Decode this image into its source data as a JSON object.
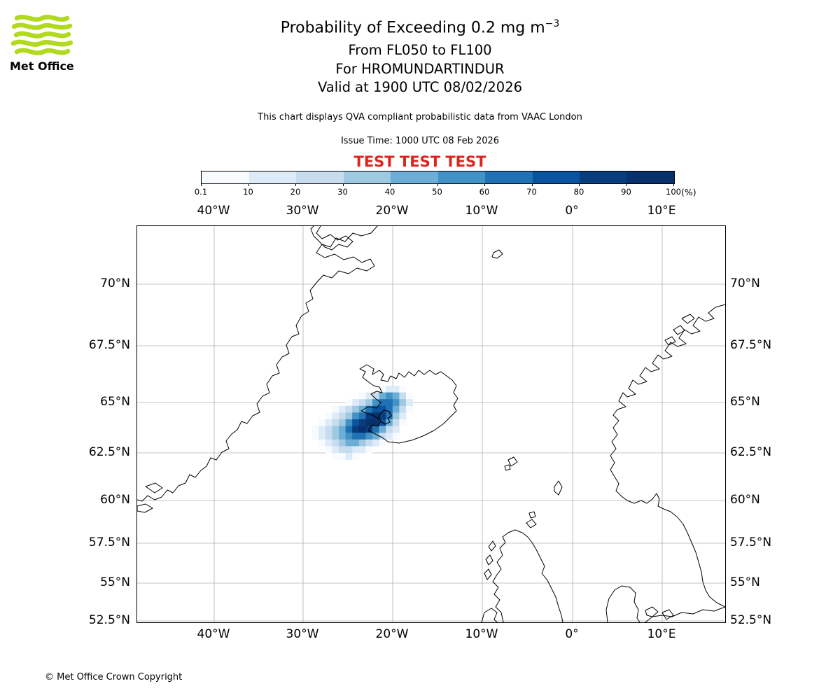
{
  "logo": {
    "text": "Met Office",
    "green": "#b2d91e"
  },
  "header": {
    "title_main": "Probability of Exceeding 0.2 mg m",
    "title_exponent": "−3",
    "line_fl": "From FL050 to FL100",
    "line_for": "For HROMUNDARTINDUR",
    "line_valid": "Valid at 1900 UTC 08/02/2026",
    "description": "This chart displays QVA compliant probabilistic data from VAAC London",
    "issue_time": "Issue Time: 1000 UTC 08 Feb 2026",
    "test_banner": "TEST TEST TEST",
    "test_color": "#dc241f"
  },
  "colorbar": {
    "tick_labels": [
      "0.1",
      "10",
      "20",
      "30",
      "40",
      "50",
      "60",
      "70",
      "80",
      "90",
      "100"
    ],
    "unit_label": "(%)",
    "colors": [
      "#f7fbff",
      "#ddeaf7",
      "#c7dcef",
      "#9fc9e1",
      "#6caed6",
      "#4292c6",
      "#2171b5",
      "#0a539e",
      "#083c7d",
      "#08306b"
    ]
  },
  "axes": {
    "lon_ticks": [
      "40°W",
      "30°W",
      "20°W",
      "10°W",
      "0°",
      "10°E"
    ],
    "lat_ticks": [
      "70°N",
      "67.5°N",
      "65°N",
      "62.5°N",
      "60°N",
      "57.5°N",
      "55°N",
      "52.5°N"
    ]
  },
  "chart_data": {
    "type": "heatmap",
    "quantity": "Probability of exceeding 0.2 mg m-3 volcanic ash concentration (%)",
    "layer": "FL050 to FL100",
    "volcano": "HROMUNDARTINDUR",
    "valid_time": "1900 UTC 08/02/2026",
    "issue_time": "1000 UTC 08 Feb 2026",
    "data_source": "QVA compliant probabilistic data from VAAC London",
    "probability_bin_edges_percent": [
      0.1,
      10,
      20,
      30,
      40,
      50,
      60,
      70,
      80,
      90,
      100
    ],
    "map_lon_ticks": [
      "40°W",
      "30°W",
      "20°W",
      "10°W",
      "0°",
      "10°E"
    ],
    "map_lat_ticks": [
      "70°N",
      "67.5°N",
      "65°N",
      "62.5°N",
      "60°N",
      "57.5°N",
      "55°N",
      "52.5°N"
    ],
    "plume_extent_estimate": {
      "lon_west": "30°W",
      "lon_east": "17°W",
      "lat_south": "62.2°N",
      "lat_north": "65.7°N",
      "location": "over and southwest of Iceland, peak >90% southwest of the volcano"
    },
    "plume_grid": {
      "note": "Estimated probability (%) per raster cell read from map colours; 0 = below 0.1%",
      "values": [
        [
          0,
          0,
          0,
          0,
          0,
          0,
          0,
          0,
          0,
          0,
          0,
          5,
          15,
          15,
          5,
          0,
          0
        ],
        [
          0,
          0,
          0,
          0,
          0,
          0,
          0,
          0,
          5,
          15,
          25,
          45,
          55,
          45,
          25,
          5,
          0
        ],
        [
          0,
          0,
          0,
          0,
          0,
          0,
          5,
          15,
          25,
          35,
          55,
          65,
          65,
          55,
          35,
          15,
          0
        ],
        [
          0,
          0,
          0,
          0,
          5,
          15,
          25,
          35,
          45,
          65,
          75,
          75,
          65,
          45,
          25,
          5,
          0
        ],
        [
          0,
          0,
          0,
          5,
          15,
          25,
          35,
          55,
          65,
          85,
          95,
          85,
          65,
          35,
          15,
          0,
          0
        ],
        [
          0,
          0,
          5,
          15,
          25,
          35,
          55,
          75,
          85,
          95,
          95,
          75,
          45,
          25,
          5,
          0,
          0
        ],
        [
          0,
          5,
          15,
          25,
          35,
          45,
          65,
          85,
          95,
          85,
          65,
          45,
          25,
          15,
          0,
          0,
          0
        ],
        [
          0,
          5,
          15,
          25,
          35,
          45,
          55,
          65,
          65,
          55,
          45,
          25,
          15,
          5,
          0,
          0,
          0
        ],
        [
          0,
          0,
          5,
          15,
          25,
          35,
          45,
          45,
          35,
          25,
          15,
          5,
          0,
          0,
          0,
          0,
          0
        ],
        [
          0,
          0,
          0,
          5,
          15,
          25,
          25,
          15,
          15,
          5,
          0,
          0,
          0,
          0,
          0,
          0,
          0
        ],
        [
          0,
          0,
          0,
          0,
          5,
          5,
          15,
          5,
          0,
          0,
          0,
          0,
          0,
          0,
          0,
          0,
          0
        ]
      ]
    }
  },
  "footer": {
    "copyright": "© Met Office Crown Copyright"
  }
}
